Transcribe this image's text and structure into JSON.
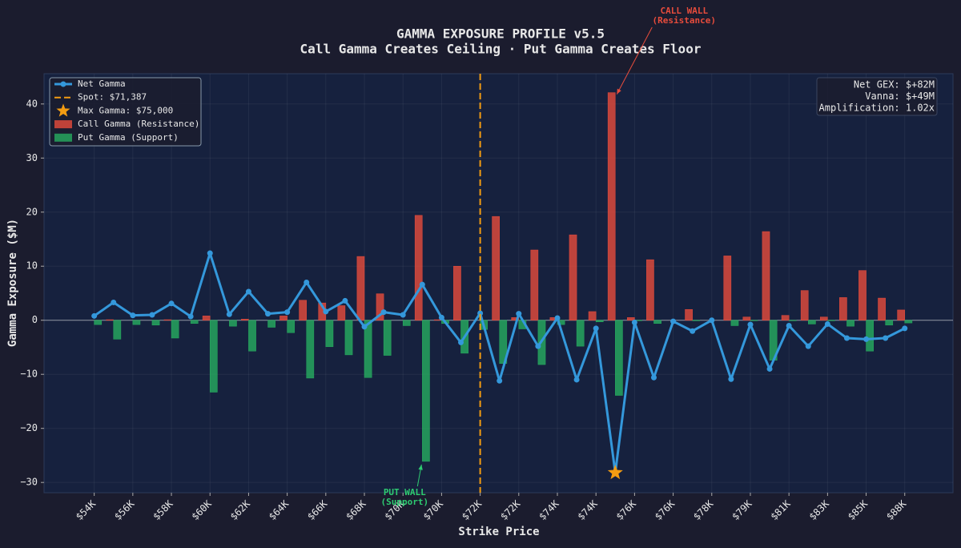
{
  "chart_data": {
    "type": "bar",
    "title": "GAMMA EXPOSURE PROFILE v5.5",
    "subtitle": "Call Gamma Creates Ceiling · Put Gamma Creates Floor",
    "x_label": "Strike Price",
    "y_label": "Gamma Exposure ($M)",
    "categories": [
      "$54K",
      null,
      "$56K",
      null,
      "$58K",
      null,
      "$60K",
      null,
      "$62K",
      null,
      "$64K",
      null,
      "$66K",
      null,
      "$68K",
      null,
      "$70K",
      null,
      "$70K",
      null,
      "$72K",
      null,
      "$72K",
      null,
      "$74K",
      null,
      "$74K",
      null,
      "$76K",
      null,
      "$76K",
      null,
      "$78K",
      null,
      "$79K",
      null,
      "$81K",
      null,
      "$83K",
      null,
      "$85K",
      null,
      "$88K"
    ],
    "series": [
      {
        "name": "Call Gamma (Resistance)",
        "type": "bar",
        "color": "#e74c3c",
        "values": [
          0,
          0.1,
          0,
          0,
          0.1,
          0,
          0.8,
          0,
          0.2,
          0,
          0.8,
          3.7,
          3.2,
          2.7,
          11.8,
          4.9,
          0,
          19.4,
          0.1,
          10.0,
          0,
          19.2,
          0.5,
          13.0,
          0.5,
          15.8,
          1.6,
          42.1,
          0.5,
          11.2,
          0,
          2.0,
          0,
          11.9,
          0.6,
          16.4,
          0.9,
          5.5,
          0.6,
          4.2,
          9.2,
          4.1,
          1.9
        ]
      },
      {
        "name": "Put Gamma (Support)",
        "type": "bar",
        "color": "#27ae60",
        "values": [
          -0.8,
          -3.5,
          -0.8,
          -0.9,
          -3.3,
          -0.6,
          -13.3,
          -1.1,
          -5.7,
          -1.3,
          -2.3,
          -10.7,
          -4.9,
          -6.4,
          -10.6,
          -6.5,
          -1.0,
          -26.1,
          -0.6,
          -6.1,
          -1.7,
          -8.0,
          -1.6,
          -8.2,
          -0.8,
          -4.8,
          -0.3,
          -13.9,
          -0.1,
          -0.6,
          0,
          -0.1,
          0,
          -1.0,
          -0.1,
          -7.4,
          -0.1,
          -0.7,
          -0.1,
          -1.1,
          -5.7,
          -0.9,
          -0.5
        ]
      },
      {
        "name": "Net Gamma",
        "type": "line",
        "color": "#3498db",
        "values": [
          0.8,
          3.3,
          0.9,
          1.0,
          3.1,
          0.7,
          12.4,
          1.1,
          5.3,
          1.2,
          1.5,
          7.0,
          1.6,
          3.6,
          -1.2,
          1.5,
          1.0,
          6.6,
          0.5,
          -4.1,
          1.3,
          -11.2,
          1.2,
          -4.8,
          0.4,
          -11.0,
          -1.5,
          -28.2,
          -0.4,
          -10.6,
          -0.2,
          -2.0,
          0,
          -10.9,
          -0.8,
          -9.0,
          -1.0,
          -4.8,
          -0.7,
          -3.3,
          -3.5,
          -3.3,
          -1.5
        ]
      }
    ],
    "spot": {
      "label": "Spot: $71,387",
      "x_index": 20,
      "color": "#f39c12"
    },
    "max_gamma": {
      "label": "Max Gamma: $75,000",
      "x_index": 27,
      "color": "#f39c12"
    },
    "annotations": [
      {
        "text": [
          "CALL WALL",
          "(Resistance)"
        ],
        "x_index": 27,
        "series": 0,
        "color": "#e74c3c"
      },
      {
        "text": [
          "PUT WALL",
          "(Support)"
        ],
        "x_index": 17,
        "series": 1,
        "color": "#2ecc71"
      }
    ],
    "info": [
      "Net GEX: $+82M",
      "Vanna: $+49M",
      "Amplification: 1.02x"
    ],
    "ylim": [
      -31.9,
      45.6
    ],
    "yticks": [
      {
        "value": -30,
        "label": "−30"
      },
      {
        "value": -20,
        "label": "−20"
      },
      {
        "value": -10,
        "label": "−10"
      },
      0,
      10,
      20,
      30,
      40
    ],
    "grid": true,
    "legend": "upper left"
  }
}
